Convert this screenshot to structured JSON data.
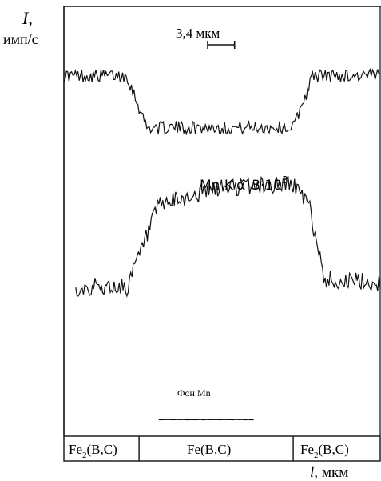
{
  "chart_data": {
    "type": "line",
    "y_axis": {
      "symbol": "I",
      "symbol_suffix": ",",
      "unit": "имп/с"
    },
    "x_axis": {
      "symbol": "l",
      "symbol_suffix": ",",
      "unit": "мкм"
    },
    "scale_bar": {
      "label": "3,4 мкм",
      "length_um": 3.4
    },
    "x_range_um": [
      0,
      40
    ],
    "series": [
      {
        "key": "upper",
        "profile": [
          [
            0,
            0.78
          ],
          [
            8,
            0.78
          ],
          [
            10.5,
            0.42
          ],
          [
            29,
            0.42
          ],
          [
            31.5,
            0.78
          ],
          [
            40,
            0.78
          ]
        ],
        "noise": 0.045
      },
      {
        "key": "mn",
        "label": {
          "text": "Mn K",
          "greek": "α",
          "factor": "3·10",
          "exponent": "3"
        },
        "profile": [
          [
            1.5,
            0.18
          ],
          [
            8,
            0.18
          ],
          [
            12,
            0.62
          ],
          [
            20,
            0.72
          ],
          [
            29,
            0.74
          ],
          [
            31,
            0.62
          ],
          [
            33,
            0.22
          ],
          [
            40,
            0.2
          ]
        ],
        "noise": 0.05
      },
      {
        "key": "background",
        "label": {
          "text": "Фон Mn"
        },
        "profile": [
          [
            12,
            0.03
          ],
          [
            24,
            0.03
          ]
        ],
        "noise": 0.012
      }
    ],
    "phases": [
      {
        "label_main": "Fe",
        "label_sub": "2",
        "label_rest": "(B,C)",
        "range_um": [
          0,
          9.5
        ]
      },
      {
        "label_main": "Fe(B,C)",
        "label_sub": "",
        "label_rest": "",
        "range_um": [
          9.5,
          29
        ]
      },
      {
        "label_main": "Fe",
        "label_sub": "2",
        "label_rest": "(B,C)",
        "range_um": [
          29,
          40
        ]
      }
    ]
  }
}
